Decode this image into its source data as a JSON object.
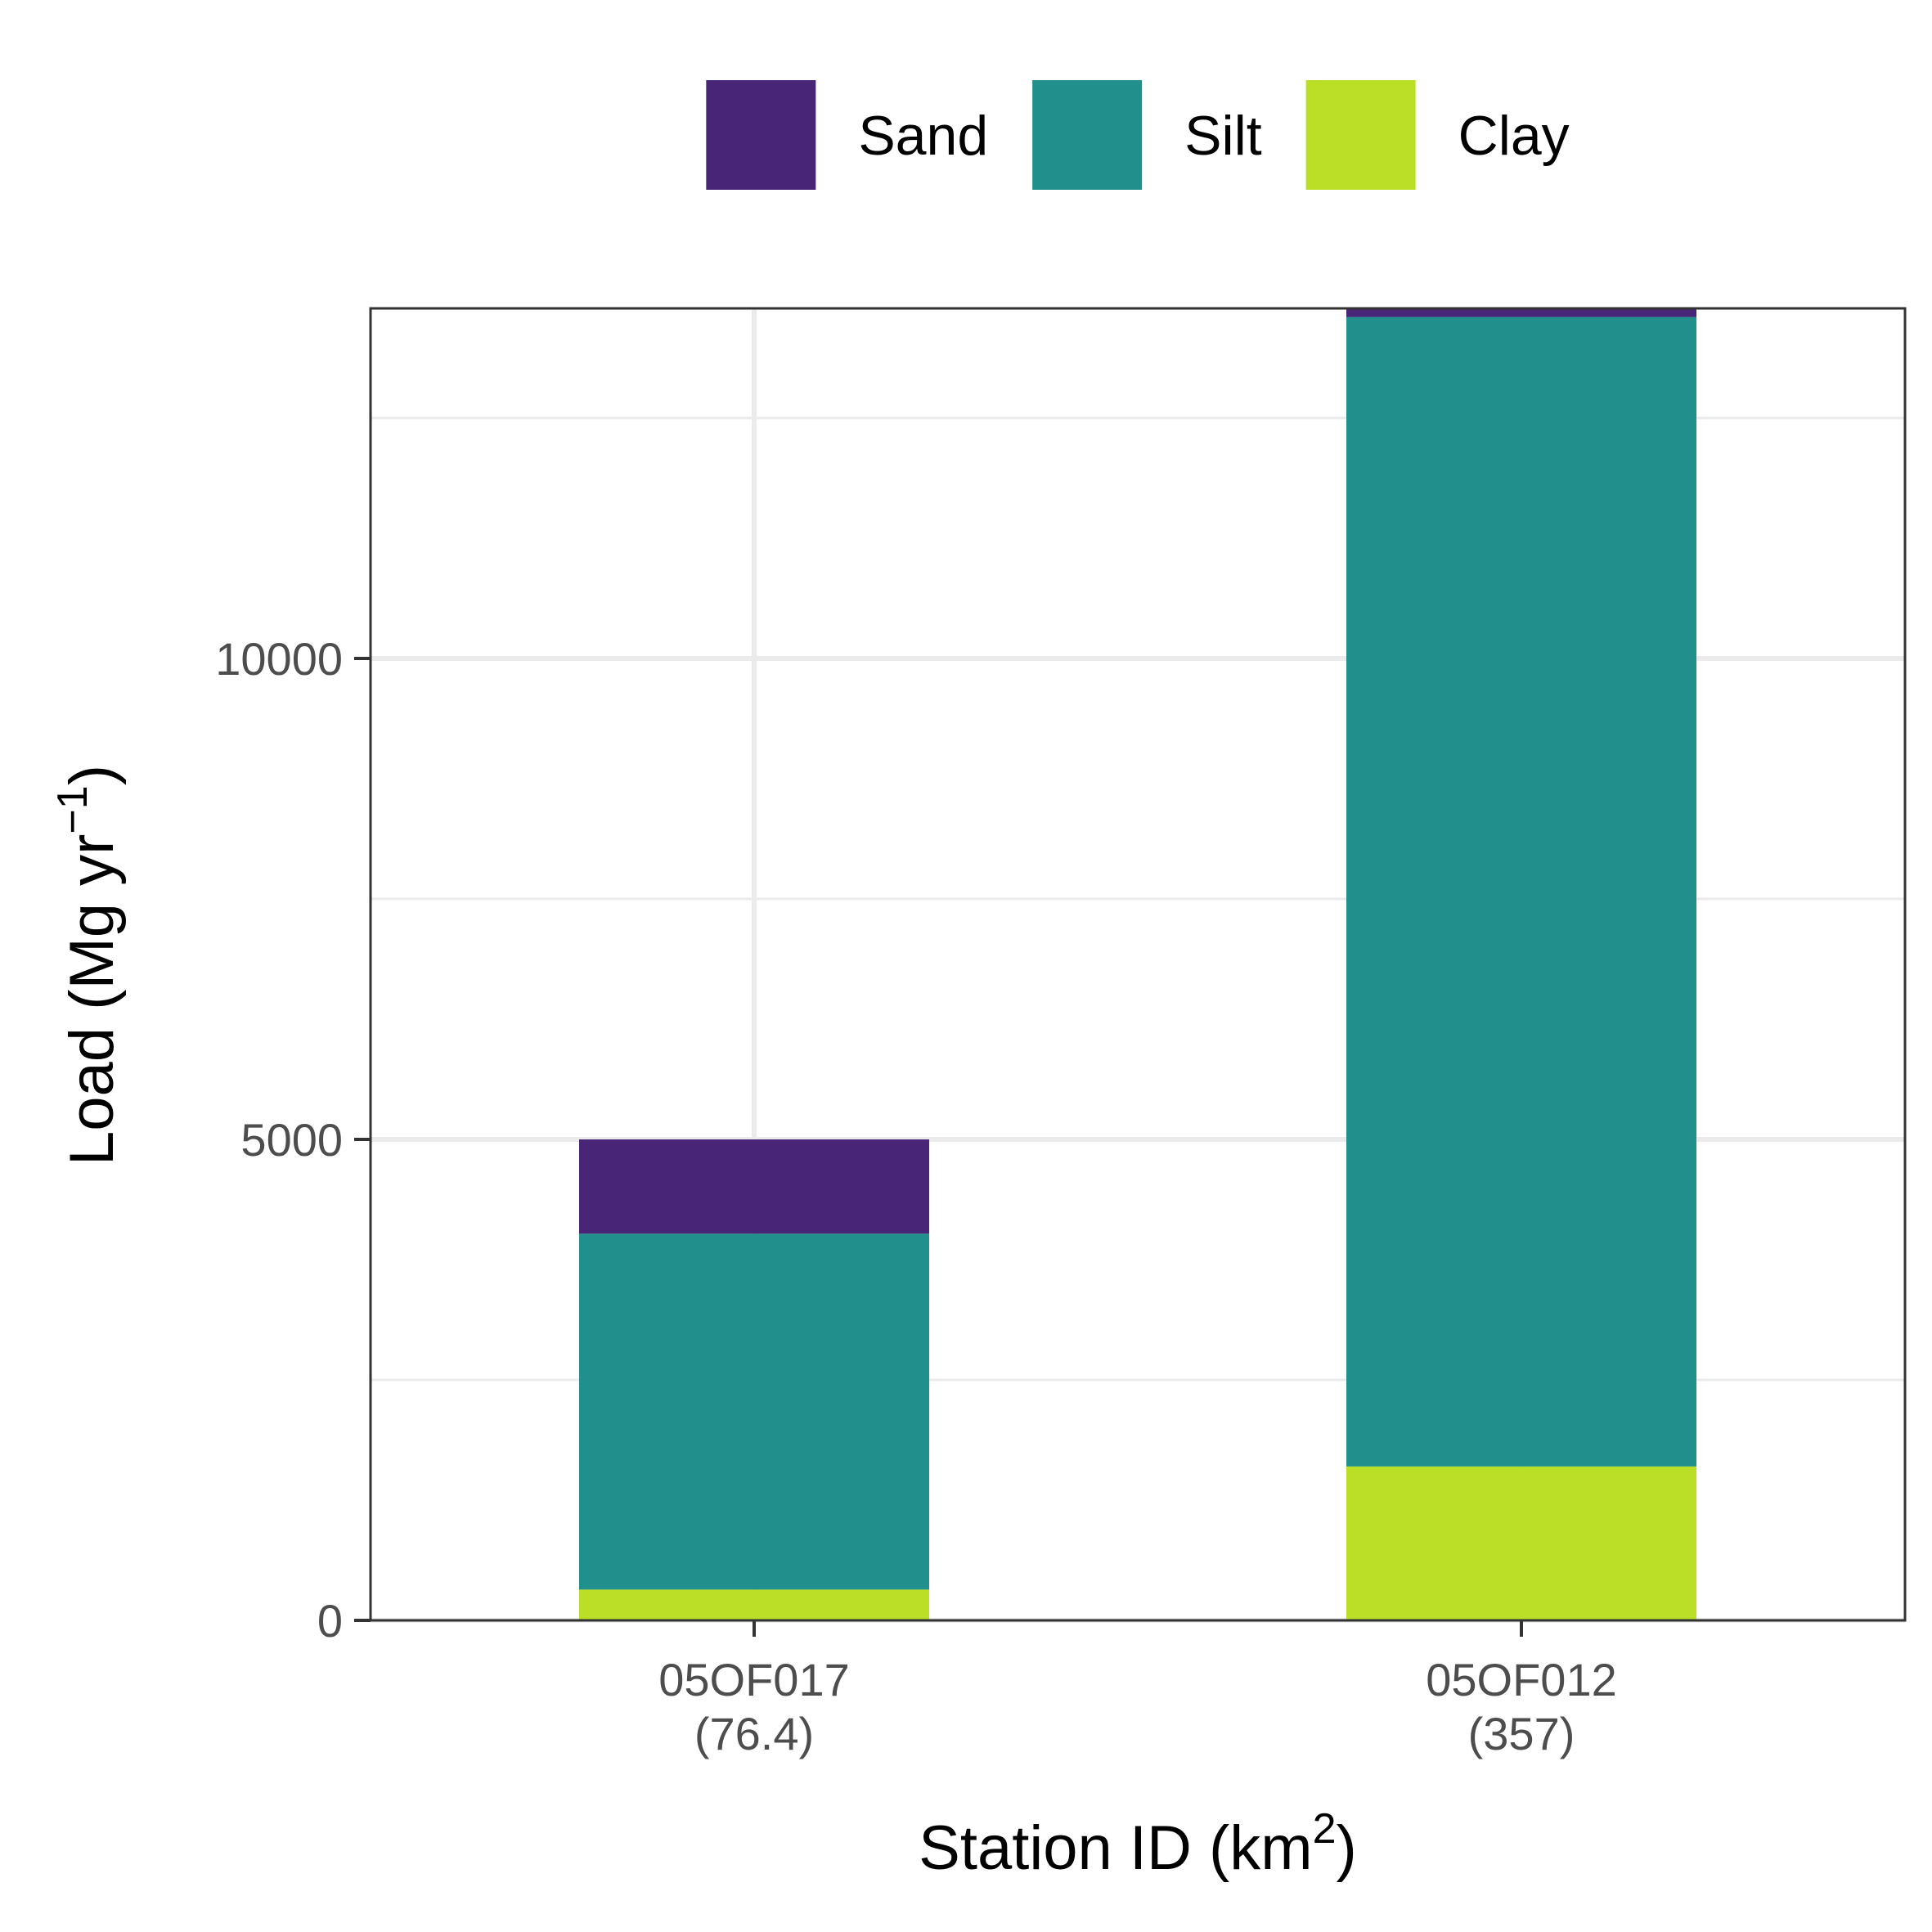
{
  "chart_data": {
    "type": "bar",
    "stacked": true,
    "categories": [
      {
        "station": "05OF017",
        "area": "(76.4)"
      },
      {
        "station": "05OF012",
        "area": "(357)"
      }
    ],
    "series": [
      {
        "name": "Sand",
        "color": "#482576",
        "values": [
          980,
          90
        ]
      },
      {
        "name": "Silt",
        "color": "#21908C",
        "values": [
          3700,
          11950
        ]
      },
      {
        "name": "Clay",
        "color": "#BBDF27",
        "values": [
          320,
          1600
        ]
      }
    ],
    "xlabel": {
      "text": "Station ID (km",
      "sup": "2",
      "suffix": ")"
    },
    "ylabel": {
      "text": "Load (Mg yr",
      "sup": "−1",
      "suffix": ")"
    },
    "yticks": [
      0,
      5000,
      10000
    ],
    "y_minor_ticks": [
      2500,
      7500,
      12500
    ],
    "ylim": [
      0,
      13640
    ],
    "grid": true,
    "legend_position": "top"
  }
}
